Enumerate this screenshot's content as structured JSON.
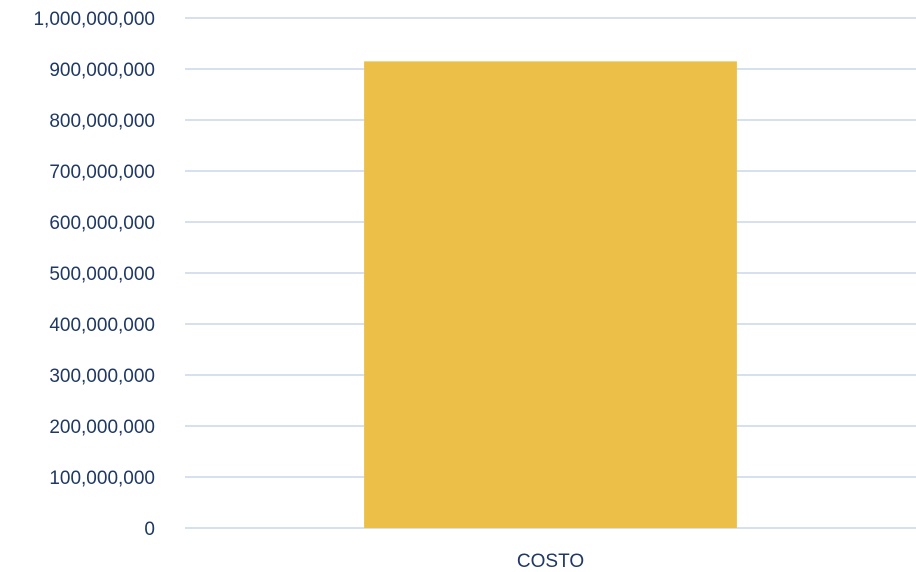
{
  "chart_data": {
    "type": "bar",
    "title": "",
    "xlabel": "",
    "ylabel": "",
    "categories": [
      "COSTO"
    ],
    "values": [
      915000000
    ],
    "ylim": [
      0,
      1000000000
    ],
    "yticks": [
      0,
      100000000,
      200000000,
      300000000,
      400000000,
      500000000,
      600000000,
      700000000,
      800000000,
      900000000,
      1000000000
    ],
    "ytick_labels": [
      "0",
      "100,000,000",
      "200,000,000",
      "300,000,000",
      "400,000,000",
      "500,000,000",
      "600,000,000",
      "700,000,000",
      "800,000,000",
      "900,000,000",
      "1,000,000,000"
    ],
    "grid": true,
    "legend": "none",
    "colors": {
      "bar": "#ecbf48",
      "gridline": "#c9d6ea",
      "text": "#1f3864"
    }
  }
}
